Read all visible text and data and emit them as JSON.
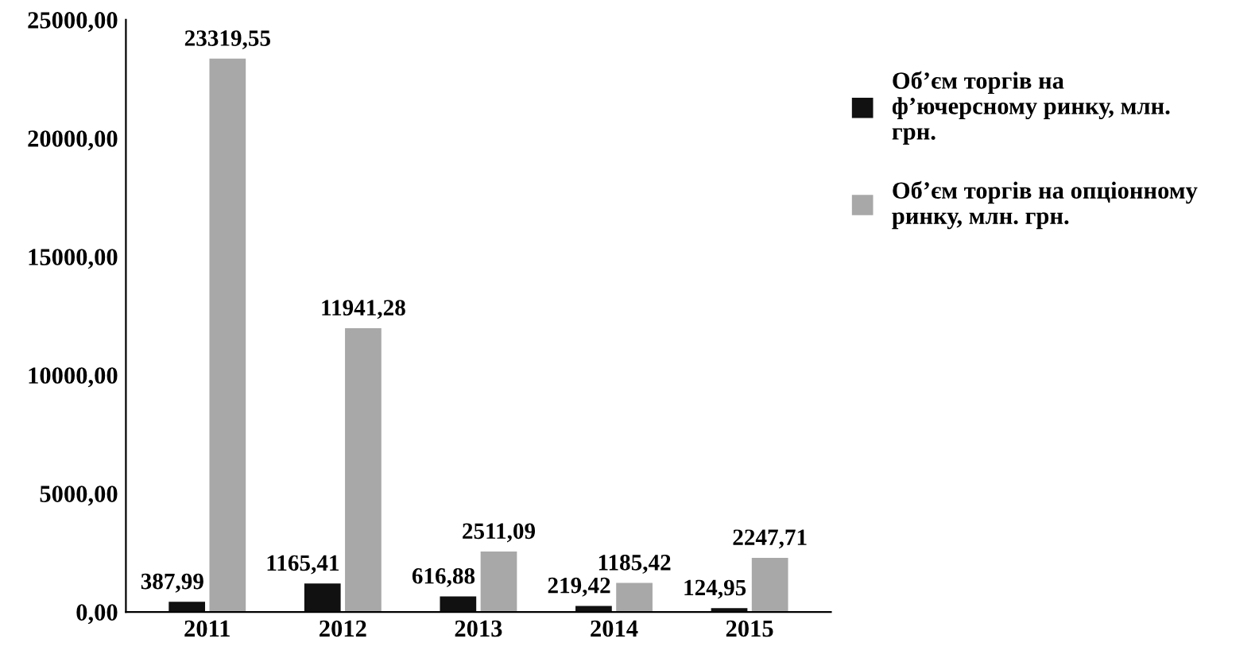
{
  "chart_data": {
    "type": "bar",
    "categories": [
      "2011",
      "2012",
      "2013",
      "2014",
      "2015"
    ],
    "series": [
      {
        "name": "Об’єм торгів на\nф’ючерсному ринку, млн.\nгрн.",
        "color": "#111111",
        "values": [
          387.99,
          1165.41,
          616.88,
          219.42,
          124.95
        ],
        "value_labels": [
          "387,99",
          "1165,41",
          "616,88",
          "219,42",
          "124,95"
        ]
      },
      {
        "name": "Об’єм торгів на опціонному\nринку, млн. грн.",
        "color": "#a8a8a8",
        "values": [
          23319.55,
          11941.28,
          2511.09,
          1185.42,
          2247.71
        ],
        "value_labels": [
          "23319,55",
          "11941,28",
          "2511,09",
          "1185,42",
          "2247,71"
        ]
      }
    ],
    "ylim": [
      0,
      25000
    ],
    "yticks": [
      {
        "value": 0,
        "label": "0,00"
      },
      {
        "value": 5000,
        "label": "5000,00"
      },
      {
        "value": 10000,
        "label": "10000,00"
      },
      {
        "value": 15000,
        "label": "15000,00"
      },
      {
        "value": 20000,
        "label": "20000,00"
      },
      {
        "value": 25000,
        "label": "25000,00"
      }
    ],
    "grid": false,
    "legend": "top right"
  }
}
